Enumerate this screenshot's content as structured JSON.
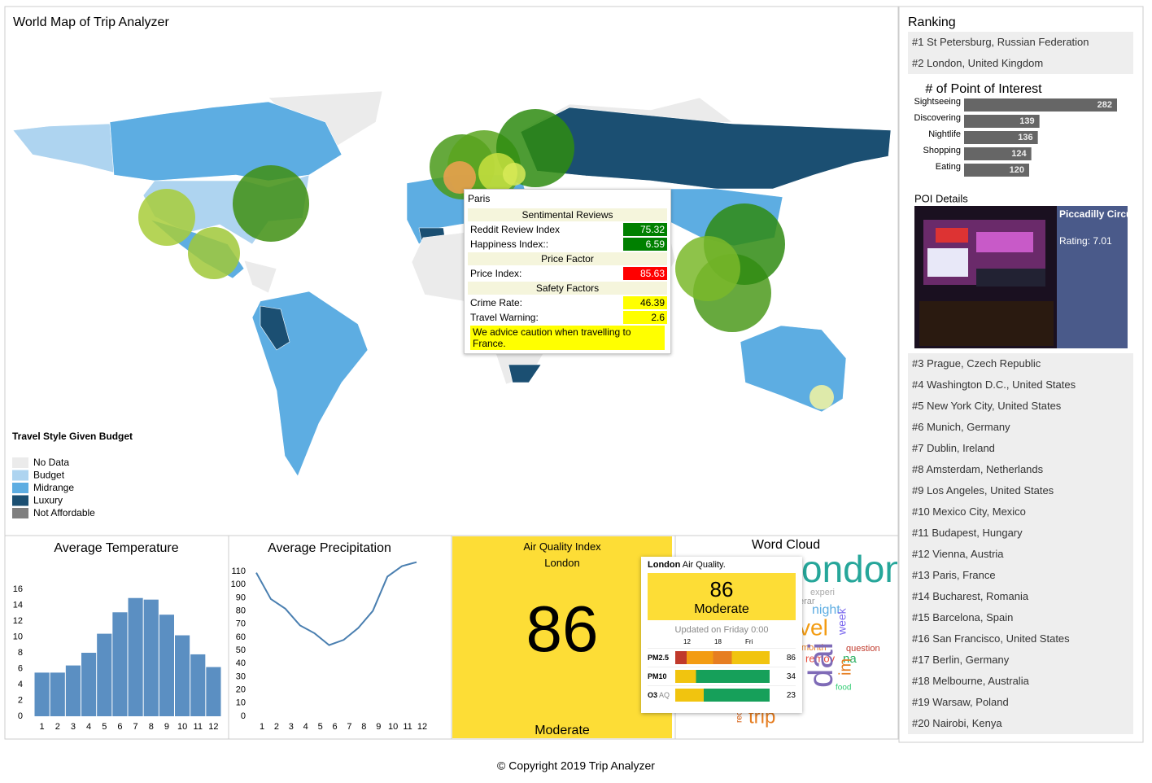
{
  "header": {
    "title": "World Map of Trip Analyzer"
  },
  "map": {
    "legend": {
      "title": "Travel Style Given Budget",
      "items": [
        {
          "label": "No Data",
          "color": "#ebebeb"
        },
        {
          "label": "Budget",
          "color": "#aed4f0"
        },
        {
          "label": "Midrange",
          "color": "#5dade2"
        },
        {
          "label": "Luxury",
          "color": "#1b4f72"
        },
        {
          "label": "Not Affordable",
          "color": "#7f7f7f"
        }
      ]
    },
    "tooltip": {
      "city": "Paris",
      "sections": [
        {
          "title": "Sentimental Reviews",
          "rows": [
            {
              "label": "Reddit Review Index",
              "value": 75.32,
              "color": "#008000"
            },
            {
              "label": "Happiness Index::",
              "value": 6.59,
              "color": "#008000"
            }
          ]
        },
        {
          "title": "Price Factor",
          "rows": [
            {
              "label": "Price Index:",
              "value": 85.63,
              "color": "#ff0000"
            }
          ]
        },
        {
          "title": "Safety Factors",
          "rows": [
            {
              "label": "Crime Rate:",
              "value": 46.39,
              "color": "#ffff00"
            },
            {
              "label": "Travel Warning:",
              "value": 2.6,
              "color": "#ffff00"
            }
          ]
        }
      ],
      "advice": "We advice caution when travelling to France."
    }
  },
  "chart_data": [
    {
      "type": "hbar",
      "title": "# of Point of Interest",
      "categories": [
        "Sightseeing",
        "Discovering",
        "Nightlife",
        "Shopping",
        "Eating"
      ],
      "values": [
        282,
        139,
        136,
        124,
        120
      ],
      "color": "#666666",
      "xlim": [
        0,
        300
      ]
    },
    {
      "type": "bar",
      "title": "Average Temperature",
      "categories": [
        1,
        2,
        3,
        4,
        5,
        6,
        7,
        8,
        9,
        10,
        11,
        12
      ],
      "values": [
        5.5,
        5.5,
        6.4,
        8.0,
        10.4,
        13.1,
        14.9,
        14.7,
        12.8,
        10.2,
        7.8,
        6.2
      ],
      "color": "#5b8fc2",
      "ylim": [
        0,
        16
      ],
      "yticks": [
        0,
        2,
        4,
        6,
        8,
        10,
        12,
        14,
        16
      ]
    },
    {
      "type": "line",
      "title": "Average Precipitation",
      "x": [
        1,
        2,
        3,
        4,
        5,
        6,
        7,
        8,
        9,
        10,
        11,
        12
      ],
      "values": [
        109,
        89,
        81.6,
        69,
        63,
        54,
        58,
        67,
        80,
        106,
        114,
        117
      ],
      "color": "#4a7fb0",
      "xlim": [
        1,
        12
      ],
      "xticks": [
        1,
        2,
        3,
        4,
        5,
        6,
        7,
        8,
        9,
        10,
        11,
        12
      ],
      "ylim": [
        0,
        120
      ],
      "yticks": [
        0,
        10,
        20,
        30,
        40,
        50,
        60,
        70,
        80,
        90,
        100,
        110
      ]
    }
  ],
  "air_quality": {
    "title": "Air Quality Index",
    "city": "London",
    "value": 86,
    "level": "Moderate",
    "tooltip": {
      "city": "London",
      "suffix": "Air Quality.",
      "value": 86,
      "level": "Moderate",
      "updated": "Updated on Friday 0:00",
      "axis": [
        12,
        18,
        "Fri"
      ],
      "rows": [
        {
          "name": "PM2.5",
          "value": 86
        },
        {
          "name": "PM10",
          "value": 34
        },
        {
          "name": "O3",
          "tag": "AQ",
          "value": 23
        }
      ]
    }
  },
  "word_cloud": {
    "title": "Word Cloud",
    "words": [
      {
        "text": "ondon",
        "color": "#26a69a"
      },
      {
        "text": "experi",
        "color": "#aaaaaa"
      },
      {
        "text": "erar",
        "color": "#999999"
      },
      {
        "text": "night",
        "color": "#5dade2"
      },
      {
        "text": "vel",
        "color": "#f39c12"
      },
      {
        "text": "week",
        "color": "#7b68ee"
      },
      {
        "text": "month",
        "color": "#e67e22"
      },
      {
        "text": "remov",
        "color": "#e74c3c"
      },
      {
        "text": "na",
        "color": "#27ae60"
      },
      {
        "text": "question",
        "color": "#c0392b"
      },
      {
        "text": "dai",
        "color": "#7f6bb7"
      },
      {
        "text": "im",
        "color": "#e67e22"
      },
      {
        "text": "food",
        "color": "#2ecc71"
      },
      {
        "text": "trip",
        "color": "#e67e22"
      },
      {
        "text": "reco",
        "color": "#d35400"
      }
    ]
  },
  "ranking": {
    "title": "Ranking",
    "items": [
      "#1 St Petersburg, Russian Federation",
      "#2 London, United Kingdom",
      "#3 Prague, Czech Republic",
      "#4 Washington D.C., United States",
      "#5 New York City, United States",
      "#6 Munich, Germany",
      "#7 Dublin, Ireland",
      "#8 Amsterdam, Netherlands",
      "#9 Los Angeles, United States",
      "#10 Mexico City, Mexico",
      "#11 Budapest, Hungary",
      "#12 Vienna, Austria",
      "#13 Paris, France",
      "#14 Bucharest, Romania",
      "#15 Barcelona, Spain",
      "#16 San Francisco, United States",
      "#17 Berlin, Germany",
      "#18 Melbourne, Australia",
      "#19 Warsaw, Poland",
      "#20 Nairobi, Kenya"
    ]
  },
  "poi_details": {
    "title": "POI Details",
    "name": "Piccadilly Circus",
    "rating": "Rating: 7.01"
  },
  "footer": "© Copyright 2019 Trip Analyzer"
}
